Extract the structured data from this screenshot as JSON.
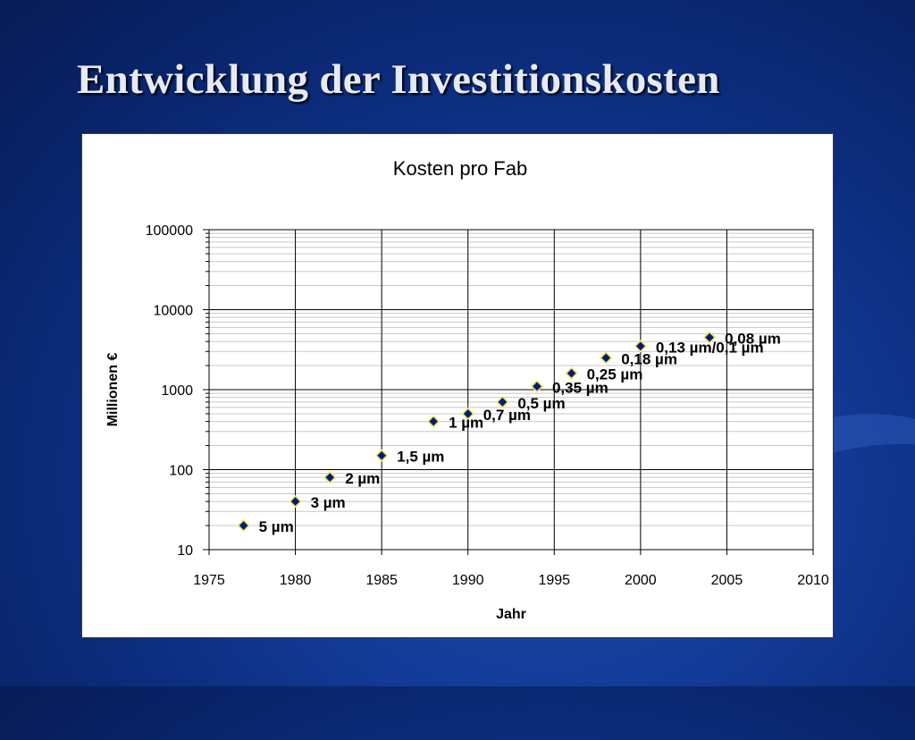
{
  "slide": {
    "title": "Entwicklung der Investitionskosten"
  },
  "colors": {
    "background": "#0b2a78",
    "title_text": "#e6eaf6",
    "marker_fill": "#001a8c",
    "marker_outline": "#f2e84a",
    "major_grid": "#000000",
    "minor_grid": "#c8c8c8"
  },
  "chart_data": {
    "type": "scatter",
    "title": "Kosten pro Fab",
    "xlabel": "Jahr",
    "ylabel": "Millionen €",
    "xlim": [
      1975,
      2010
    ],
    "ylim": [
      10,
      100000
    ],
    "y_scale": "log",
    "x_ticks": [
      1975,
      1980,
      1985,
      1990,
      1995,
      2000,
      2005,
      2010
    ],
    "y_ticks": [
      10,
      100,
      1000,
      10000,
      100000
    ],
    "y_tick_labels": [
      "10",
      "100",
      "1000",
      "10000",
      "100000"
    ],
    "grid": true,
    "legend": "none",
    "series": [
      {
        "points": [
          {
            "x": 1977,
            "y": 20,
            "label": "5 µm"
          },
          {
            "x": 1980,
            "y": 40,
            "label": "3 µm"
          },
          {
            "x": 1982,
            "y": 80,
            "label": "2 µm"
          },
          {
            "x": 1985,
            "y": 150,
            "label": "1,5 µm"
          },
          {
            "x": 1988,
            "y": 400,
            "label": "1 µm"
          },
          {
            "x": 1990,
            "y": 500,
            "label": "0,7 µm"
          },
          {
            "x": 1992,
            "y": 700,
            "label": "0,5 µm"
          },
          {
            "x": 1994,
            "y": 1100,
            "label": "0,35 µm"
          },
          {
            "x": 1996,
            "y": 1600,
            "label": "0,25 µm"
          },
          {
            "x": 1998,
            "y": 2500,
            "label": "0,18 µm"
          },
          {
            "x": 2000,
            "y": 3500,
            "label": "0,13 µm/0,1 µm"
          },
          {
            "x": 2004,
            "y": 4500,
            "label": "0,08 µm"
          }
        ]
      }
    ]
  }
}
